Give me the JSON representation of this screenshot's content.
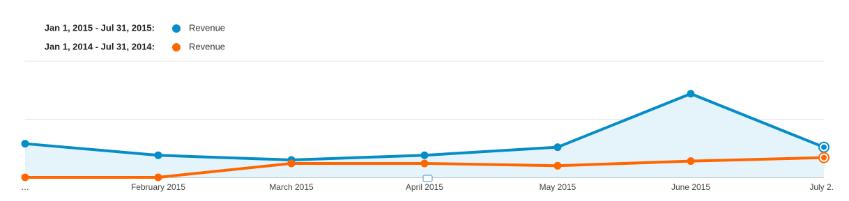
{
  "chart_data": {
    "type": "line",
    "categories": [
      "…",
      "February 2015",
      "March 2015",
      "April 2015",
      "May 2015",
      "June 2015",
      "July 2."
    ],
    "series": [
      {
        "name": "Revenue",
        "legend_label": "Jan 1, 2015 - Jul 31, 2015:",
        "color": "#058dc7",
        "values": [
          29,
          19,
          15,
          19,
          26,
          72,
          26
        ]
      },
      {
        "name": "Revenue",
        "legend_label": "Jan 1, 2014 - Jul 31, 2014:",
        "color": "#ff6600",
        "values": [
          0,
          0,
          12,
          12,
          10,
          14,
          17
        ]
      }
    ],
    "ylim": [
      0,
      100
    ],
    "yticks": [
      0,
      50,
      100
    ],
    "grid": true,
    "area_fill": "#e5f3fa"
  }
}
